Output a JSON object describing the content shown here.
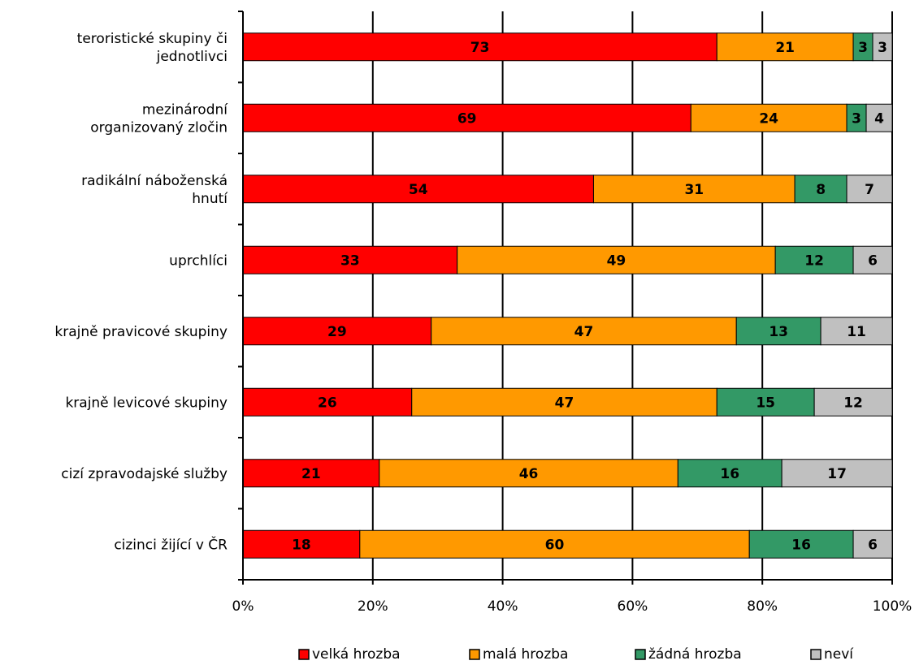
{
  "chart_data": {
    "type": "bar",
    "orientation": "horizontal",
    "stacked": true,
    "categories": [
      [
        "teroristické skupiny či",
        "jednotlivci"
      ],
      [
        "mezinárodní",
        "organizovaný zločin"
      ],
      [
        "radikální náboženská",
        "hnutí"
      ],
      [
        "uprchlíci"
      ],
      [
        "krajně pravicové skupiny"
      ],
      [
        "krajně levicové skupiny"
      ],
      [
        "cizí zpravodajské služby"
      ],
      [
        "cizinci žijící v ČR"
      ]
    ],
    "series": [
      {
        "name": "velká hrozba",
        "color": "#ff0000",
        "values": [
          73,
          69,
          54,
          33,
          29,
          26,
          21,
          18
        ]
      },
      {
        "name": "malá hrozba",
        "color": "#ff9900",
        "values": [
          21,
          24,
          31,
          49,
          47,
          47,
          46,
          60
        ]
      },
      {
        "name": "žádná hrozba",
        "color": "#339966",
        "values": [
          3,
          3,
          8,
          12,
          13,
          15,
          16,
          16
        ]
      },
      {
        "name": "neví",
        "color": "#c0c0c0",
        "values": [
          3,
          4,
          7,
          6,
          11,
          12,
          17,
          6
        ]
      }
    ],
    "x_ticks": [
      "0%",
      "20%",
      "40%",
      "60%",
      "80%",
      "100%"
    ],
    "xlim": [
      0,
      100
    ],
    "grid": true,
    "legend_position": "bottom"
  }
}
